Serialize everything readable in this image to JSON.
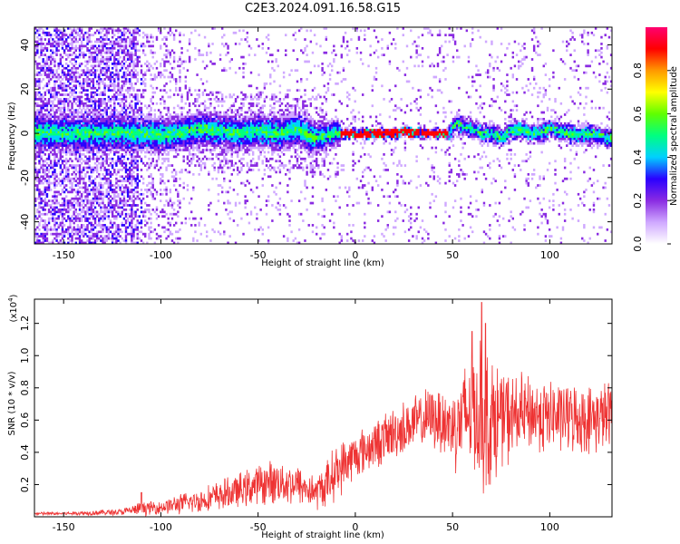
{
  "title": "C2E3.2024.091.16.58.G15",
  "chart_data": [
    {
      "type": "heatmap",
      "xlabel": "Height of straight line (km)",
      "ylabel": "Frequency (Hz)",
      "xlim": [
        -165,
        132
      ],
      "ylim": [
        -50,
        48
      ],
      "x_ticks": [
        -150,
        -100,
        -50,
        0,
        50,
        100
      ],
      "y_ticks": [
        -40,
        -20,
        0,
        20,
        40
      ],
      "colorbar": {
        "label": "Normalized spectral amplitude",
        "range": [
          0,
          1
        ],
        "ticks": [
          0.0,
          0.2,
          0.4,
          0.6,
          0.8
        ],
        "colors": [
          "#ffffff",
          "#cfa8ff",
          "#8a2be2",
          "#2a00ff",
          "#00d0ff",
          "#00ff80",
          "#60ff00",
          "#ffff00",
          "#ff9900",
          "#ff0000",
          "#ff0070"
        ]
      },
      "ridge": {
        "x": [
          -125,
          -110,
          -100,
          -90,
          -80,
          -70,
          -60,
          -50,
          -40,
          -30,
          -22,
          -15,
          -10,
          0,
          10,
          20,
          25,
          30,
          40,
          48,
          52,
          55,
          60,
          65,
          70,
          75,
          80,
          85,
          90,
          95,
          100,
          105,
          110,
          115,
          120,
          125,
          130
        ],
        "y": [
          0,
          0,
          -1,
          0,
          2,
          1,
          0,
          1,
          0,
          2,
          -2,
          -1,
          0,
          0,
          0,
          0,
          1,
          0,
          0,
          0,
          5,
          3,
          2,
          0,
          0,
          -2,
          1,
          2,
          0,
          0,
          2,
          1,
          0,
          -1,
          0,
          -1,
          -2
        ]
      },
      "grid": false
    },
    {
      "type": "line",
      "xlabel": "Height of straight line (km)",
      "ylabel": "SNR (10 * v/v)",
      "y_multiplier": "(x10",
      "y_multiplier_exp": "4",
      "y_multiplier_close": ")",
      "xlim": [
        -165,
        132
      ],
      "ylim": [
        0,
        1.35
      ],
      "x_ticks": [
        -150,
        -100,
        -50,
        0,
        50,
        100
      ],
      "y_ticks": [
        0.2,
        0.4,
        0.6,
        0.8,
        1.0,
        1.2
      ],
      "series": [
        {
          "color": "#ee3333",
          "envelope": {
            "x": [
              -165,
              -150,
              -120,
              -110,
              -100,
              -90,
              -80,
              -70,
              -60,
              -50,
              -40,
              -30,
              -20,
              -15,
              -10,
              0,
              10,
              20,
              30,
              40,
              50,
              55,
              60,
              65,
              70,
              75,
              80,
              90,
              100,
              110,
              120,
              132
            ],
            "mean": [
              0.02,
              0.02,
              0.03,
              0.05,
              0.06,
              0.08,
              0.1,
              0.13,
              0.16,
              0.2,
              0.22,
              0.2,
              0.15,
              0.2,
              0.28,
              0.38,
              0.45,
              0.52,
              0.58,
              0.62,
              0.56,
              0.6,
              0.68,
              0.62,
              0.58,
              0.62,
              0.62,
              0.64,
              0.62,
              0.62,
              0.6,
              0.64
            ],
            "amplitude": [
              0.01,
              0.01,
              0.02,
              0.04,
              0.04,
              0.06,
              0.07,
              0.09,
              0.1,
              0.12,
              0.13,
              0.12,
              0.1,
              0.14,
              0.16,
              0.14,
              0.14,
              0.16,
              0.16,
              0.18,
              0.24,
              0.32,
              0.38,
              0.44,
              0.4,
              0.3,
              0.26,
              0.22,
              0.22,
              0.2,
              0.2,
              0.2
            ]
          },
          "peaks": [
            {
              "x": -110,
              "y": 0.15
            },
            {
              "x": 65,
              "y": 1.33
            },
            {
              "x": 67,
              "y": 1.2
            },
            {
              "x": 60,
              "y": 1.15
            }
          ]
        }
      ],
      "grid": false
    }
  ]
}
